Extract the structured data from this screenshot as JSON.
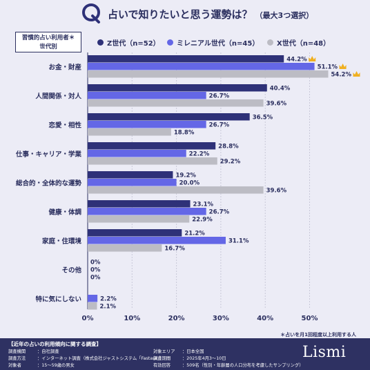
{
  "header": {
    "q_letter": "Q",
    "title": "占いで知りたいと思う運勢は？",
    "subtitle": "（最大3つ選択）"
  },
  "legend_box": {
    "line1": "習慣的占い利用者＊",
    "line2": "世代別"
  },
  "note": "＊占いを月1回程度以上利用する人",
  "footer": {
    "title": "【近年の占いの利用傾向に関する調査】",
    "rows": [
      {
        "label": "調査機関",
        "value": "：自社調査"
      },
      {
        "label": "調査方法",
        "value": "：インターネット調査（株式会社ジャストシステム「Fastask」）"
      },
      {
        "label": "対象者",
        "value": "：15～59歳の男女"
      },
      {
        "label": "対象エリア",
        "value": "：日本全国"
      },
      {
        "label": "調査期間",
        "value": "：2025年4月3～10日"
      },
      {
        "label": "有効回答",
        "value": "：509名（性別・年齢層の人口分布を考慮したサンプリング）"
      }
    ],
    "logo": "Lismi"
  },
  "colors": {
    "z": "#2e3178",
    "millennial": "#6467e6",
    "x": "#bcbcc4",
    "crown": "#f0b020",
    "text": "#2a2e5e"
  },
  "chart_data": {
    "type": "bar",
    "orientation": "horizontal",
    "categories": [
      "お金・財産",
      "人間関係・対人",
      "恋愛・相性",
      "仕事・キャリア・学業",
      "総合的・全体的な運勢",
      "健康・体調",
      "家庭・住環境",
      "その他",
      "特に気にしない"
    ],
    "series": [
      {
        "name": "Z世代（n=52）",
        "values": [
          44.2,
          40.4,
          36.5,
          28.8,
          19.2,
          23.1,
          21.2,
          0,
          0
        ]
      },
      {
        "name": "ミレニアル世代（n=45）",
        "values": [
          51.1,
          26.7,
          26.7,
          22.2,
          20.0,
          26.7,
          31.1,
          0,
          2.2
        ]
      },
      {
        "name": "X世代（n=48）",
        "values": [
          54.2,
          39.6,
          18.8,
          29.2,
          39.6,
          22.9,
          16.7,
          0,
          2.1
        ]
      }
    ],
    "value_labels": [
      [
        "44.2%",
        "40.4%",
        "36.5%",
        "28.8%",
        "19.2%",
        "23.1%",
        "21.2%",
        "0%",
        ""
      ],
      [
        "51.1%",
        "26.7%",
        "26.7%",
        "22.2%",
        "20.0%",
        "26.7%",
        "31.1%",
        "0%",
        "2.2%"
      ],
      [
        "54.2%",
        "39.6%",
        "18.8%",
        "29.2%",
        "39.6%",
        "22.9%",
        "16.7%",
        "0%",
        "2.1%"
      ]
    ],
    "crowned": [
      [
        0,
        0
      ],
      [
        1,
        0
      ],
      [
        2,
        0
      ]
    ],
    "xticks": [
      "0%",
      "10%",
      "20%",
      "30%",
      "40%",
      "50%"
    ],
    "xlim": [
      0,
      55
    ],
    "grid": true,
    "legend_position": "top"
  }
}
